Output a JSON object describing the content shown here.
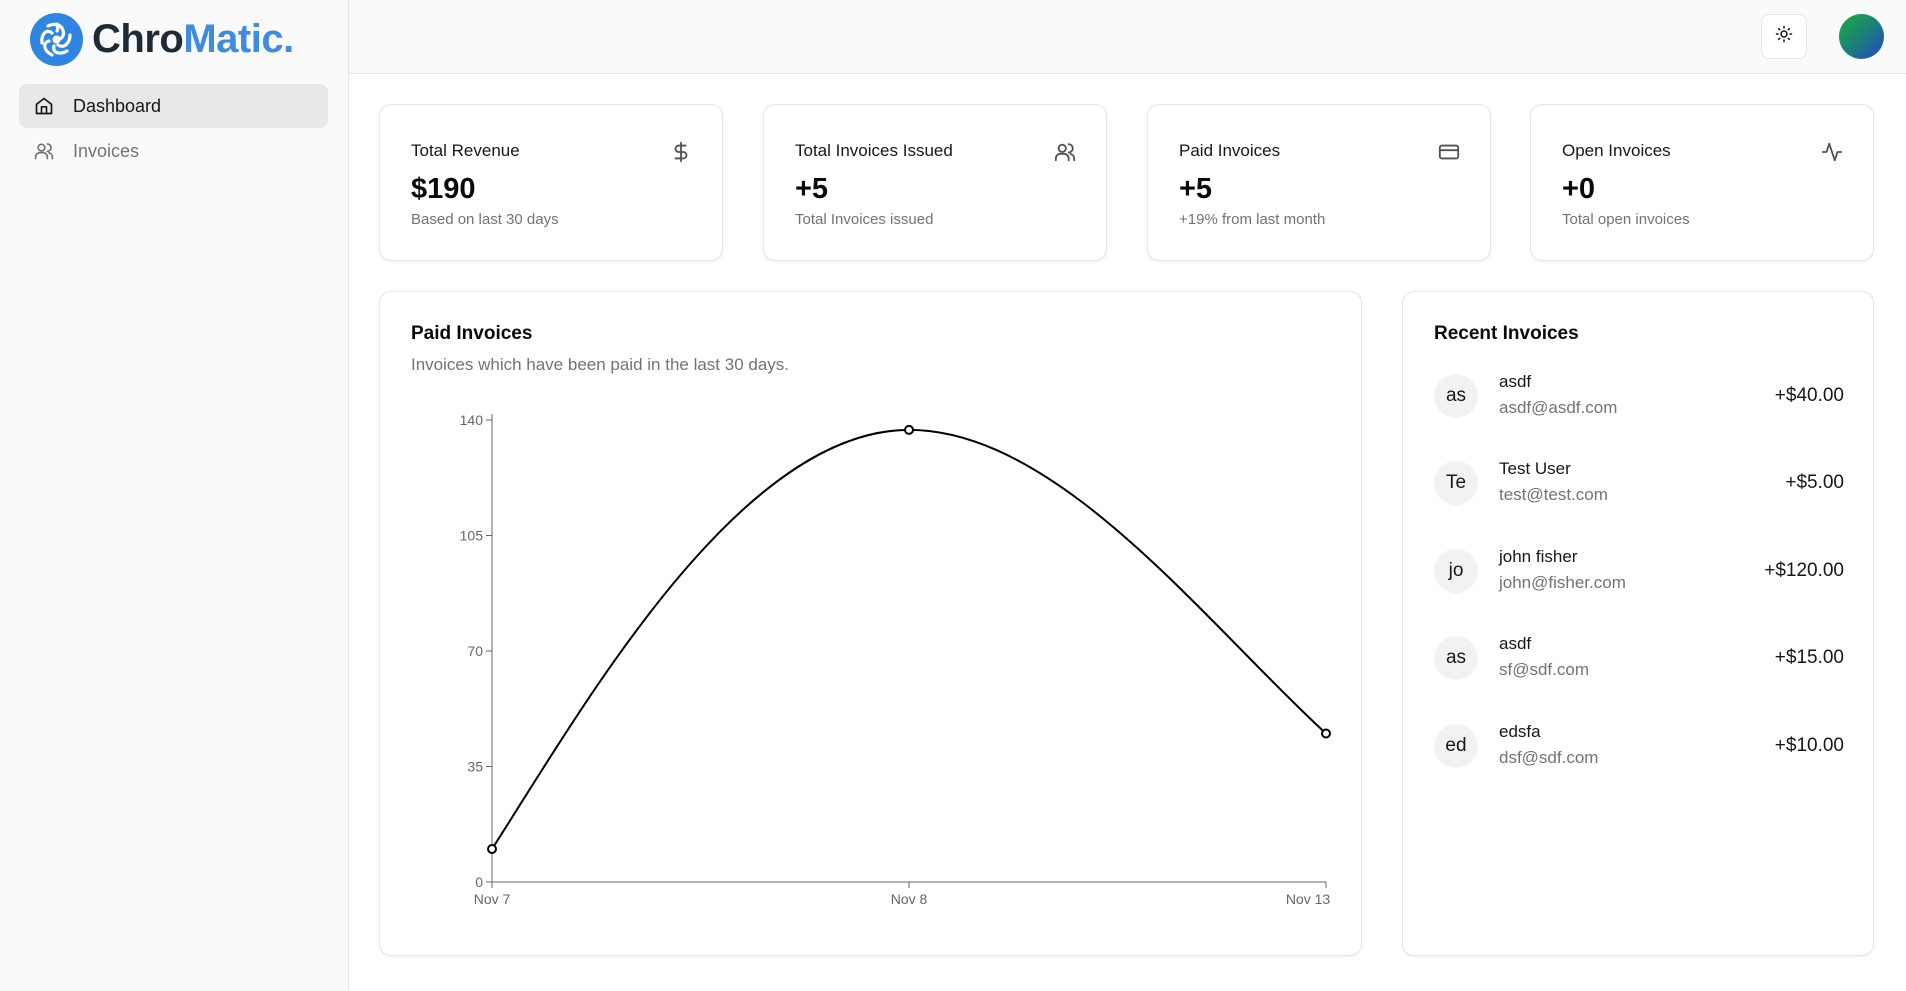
{
  "brand": {
    "part1": "Chro",
    "part2": "Matic."
  },
  "sidebar": {
    "items": [
      {
        "label": "Dashboard",
        "icon": "home-icon",
        "active": true
      },
      {
        "label": "Invoices",
        "icon": "users-icon",
        "active": false
      }
    ]
  },
  "header": {
    "theme_icon": "sun-icon"
  },
  "stats": [
    {
      "title": "Total Revenue",
      "value": "$190",
      "sub": "Based on last 30 days",
      "icon": "dollar-icon"
    },
    {
      "title": "Total Invoices Issued",
      "value": "+5",
      "sub": "Total Invoices issued",
      "icon": "users-icon"
    },
    {
      "title": "Paid Invoices",
      "value": "+5",
      "sub": "+19% from last month",
      "icon": "credit-card-icon"
    },
    {
      "title": "Open Invoices",
      "value": "+0",
      "sub": "Total open invoices",
      "icon": "activity-icon"
    }
  ],
  "chart_panel": {
    "title": "Paid Invoices",
    "subtitle": "Invoices which have been paid in the last 30 days."
  },
  "chart_data": {
    "type": "line",
    "x": [
      "Nov 7",
      "Nov 8",
      "Nov 13"
    ],
    "series": [
      {
        "values": [
          10,
          137,
          45
        ]
      }
    ],
    "xlabel": "",
    "ylabel": "",
    "ylim": [
      0,
      140
    ],
    "yticks": [
      0,
      35,
      70,
      105,
      140
    ],
    "grid": false,
    "curve": "smooth",
    "colors": {
      "line": "#000000"
    }
  },
  "recent": {
    "title": "Recent Invoices",
    "items": [
      {
        "initials": "as",
        "name": "asdf",
        "email": "asdf@asdf.com",
        "amount": "+$40.00"
      },
      {
        "initials": "Te",
        "name": "Test User",
        "email": "test@test.com",
        "amount": "+$5.00"
      },
      {
        "initials": "jo",
        "name": "john fisher",
        "email": "john@fisher.com",
        "amount": "+$120.00"
      },
      {
        "initials": "as",
        "name": "asdf",
        "email": "sf@sdf.com",
        "amount": "+$15.00"
      },
      {
        "initials": "ed",
        "name": "edsfa",
        "email": "dsf@sdf.com",
        "amount": "+$10.00"
      }
    ]
  },
  "colors": {
    "brand_blue": "#3f8bdc",
    "active_nav": "#e8e8e8",
    "muted_text": "#737373"
  }
}
